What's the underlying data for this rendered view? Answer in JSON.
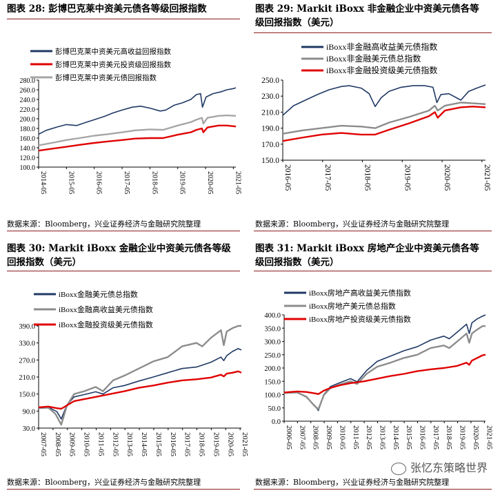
{
  "panels": [
    {
      "title_lines": [
        "图表 28: 彭博巴克莱中资美元债各等级回报指数"
      ],
      "source": "数据来源：Bloomberg，兴业证券经济与金融研究院整理",
      "chart_data": {
        "type": "line",
        "title": "彭博巴克莱中资美元债各等级回报指数",
        "xlabel": "",
        "ylabel": "",
        "x_range": [
          2014.33,
          2021.42
        ],
        "ylim": [
          100,
          280
        ],
        "yticks": [
          100,
          120,
          140,
          160,
          180,
          200,
          220,
          240,
          260,
          280
        ],
        "ytick_labels": [
          "100.0",
          "120.0",
          "140.0",
          "160.0",
          "180.0",
          "200.0",
          "220.0",
          "240.0",
          "260.0",
          "280.0"
        ],
        "xticks": [
          2014.33,
          2015.33,
          2016.33,
          2017.33,
          2018.33,
          2019.33,
          2020.33,
          2021.33
        ],
        "xtick_labels": [
          "2014-05",
          "2015-05",
          "2016-05",
          "2017-05",
          "2018-05",
          "2019-05",
          "2020-05",
          "2021-05"
        ],
        "legend_position": "top-left",
        "series": [
          {
            "name": "彭博巴克莱中资美元高收益回报指数",
            "color": "#1f3864",
            "x": [
              2014.33,
              2014.6,
              2015.0,
              2015.33,
              2015.7,
              2016.0,
              2016.33,
              2016.7,
              2017.0,
              2017.33,
              2017.7,
              2018.0,
              2018.33,
              2018.7,
              2018.9,
              2019.2,
              2019.5,
              2019.8,
              2020.0,
              2020.15,
              2020.22,
              2020.35,
              2020.6,
              2020.9,
              2021.1,
              2021.3,
              2021.42
            ],
            "values": [
              168,
              176,
              183,
              188,
              186,
              192,
              198,
              205,
              212,
              218,
              224,
              226,
              222,
              216,
              218,
              228,
              233,
              240,
              250,
              252,
              224,
              245,
              252,
              256,
              260,
              262,
              264
            ]
          },
          {
            "name": "彭博巴克莱中资美元投资级回报指数",
            "color": "#e00000",
            "x": [
              2014.33,
              2014.8,
              2015.33,
              2015.8,
              2016.33,
              2016.8,
              2017.33,
              2017.8,
              2018.33,
              2018.8,
              2019.33,
              2019.8,
              2020.0,
              2020.2,
              2020.25,
              2020.4,
              2020.8,
              2021.1,
              2021.42
            ],
            "values": [
              134,
              138,
              142,
              146,
              150,
              153,
              156,
              159,
              160,
              160,
              167,
              172,
              177,
              180,
              172,
              182,
              186,
              186,
              184
            ]
          },
          {
            "name": "彭博巴克莱中资美元债回报指数",
            "color": "#a6a6a6",
            "x": [
              2014.33,
              2014.8,
              2015.33,
              2015.8,
              2016.33,
              2016.8,
              2017.33,
              2017.8,
              2018.33,
              2018.8,
              2019.33,
              2019.8,
              2020.0,
              2020.2,
              2020.25,
              2020.4,
              2020.8,
              2021.1,
              2021.42
            ],
            "values": [
              145,
              150,
              156,
              160,
              165,
              168,
              172,
              176,
              178,
              177,
              186,
              193,
              198,
              202,
              190,
              202,
              206,
              207,
              206
            ]
          }
        ]
      }
    },
    {
      "title_lines": [
        "图表 29: Markit iBoxx 非金融企业中资美元债各等",
        "级回报指数（美元）"
      ],
      "source": "数据来源：Bloomberg，兴业证券经济与金融研究院整理",
      "chart_data": {
        "type": "line",
        "title": "Markit iBoxx 非金融企业中资美元债各等级回报指数（美元）",
        "xlabel": "",
        "ylabel": "",
        "x_range": [
          2016.33,
          2021.42
        ],
        "ylim": [
          150,
          250
        ],
        "yticks": [
          150,
          170,
          190,
          210,
          230,
          250
        ],
        "ytick_labels": [
          "150.0",
          "170.0",
          "190.0",
          "210.0",
          "230.0",
          "250.0"
        ],
        "xticks": [
          2016.33,
          2017.33,
          2018.33,
          2019.33,
          2020.33,
          2021.33
        ],
        "xtick_labels": [
          "2016-05",
          "2017-05",
          "2018-05",
          "2019-05",
          "2020-05",
          "2021-05"
        ],
        "legend_position": "top-left",
        "series": [
          {
            "name": "iBoxx非金融高收益美元债指数",
            "color": "#1f3864",
            "x": [
              2016.33,
              2016.6,
              2016.9,
              2017.2,
              2017.5,
              2017.8,
              2018.0,
              2018.3,
              2018.5,
              2018.65,
              2018.8,
              2019.0,
              2019.3,
              2019.6,
              2019.9,
              2020.1,
              2020.2,
              2020.3,
              2020.5,
              2020.8,
              2021.0,
              2021.2,
              2021.42
            ],
            "values": [
              206,
              218,
              225,
              232,
              238,
              242,
              243,
              240,
              233,
              217,
              228,
              236,
              241,
              243,
              243,
              241,
              222,
              232,
              233,
              225,
              236,
              240,
              244
            ]
          },
          {
            "name": "iBoxx非金融美元债总指数",
            "color": "#8c8c8c",
            "x": [
              2016.33,
              2016.8,
              2017.3,
              2017.8,
              2018.3,
              2018.65,
              2019.0,
              2019.5,
              2020.0,
              2020.15,
              2020.22,
              2020.4,
              2020.8,
              2021.1,
              2021.42
            ],
            "values": [
              183,
              187,
              190,
              193,
              192,
              190,
              197,
              204,
              212,
              218,
              212,
              218,
              222,
              221,
              220
            ]
          },
          {
            "name": "iBoxx非金融投资级美元债指数",
            "color": "#e00000",
            "x": [
              2016.33,
              2016.8,
              2017.3,
              2017.8,
              2018.3,
              2018.65,
              2019.0,
              2019.5,
              2020.0,
              2020.15,
              2020.22,
              2020.4,
              2020.8,
              2021.1,
              2021.42
            ],
            "values": [
              174,
              178,
              182,
              184,
              182,
              182,
              188,
              196,
              205,
              210,
              203,
              212,
              216,
              217,
              216
            ]
          }
        ]
      }
    },
    {
      "title_lines": [
        "图表 30: Markit iBoxx 金融企业中资美元债各等级",
        "回报指数（美元）"
      ],
      "source": "数据来源：Bloomberg，兴业证券经济与金融研究院整理",
      "chart_data": {
        "type": "line",
        "title": "Markit iBoxx 金融企业中资美元债各等级回报指数（美元）",
        "xlabel": "",
        "ylabel": "",
        "x_range": [
          2007.33,
          2021.42
        ],
        "ylim": [
          30,
          390
        ],
        "yticks": [
          30,
          90,
          150,
          210,
          270,
          330,
          390
        ],
        "ytick_labels": [
          "30.0",
          "90.0",
          "150.0",
          "210.0",
          "270.0",
          "330.0",
          "390.0"
        ],
        "xticks": [
          2007.33,
          2008.33,
          2009.33,
          2010.33,
          2011.33,
          2012.33,
          2013.33,
          2014.33,
          2015.33,
          2016.33,
          2017.33,
          2018.33,
          2019.33,
          2020.33,
          2021.33
        ],
        "xtick_labels": [
          "2007-05",
          "2008-05",
          "2009-05",
          "2010-05",
          "2011-05",
          "2012-05",
          "2013-05",
          "2014-05",
          "2015-05",
          "2016-05",
          "2017-05",
          "2018-05",
          "2019-05",
          "2020-05",
          "2021-05"
        ],
        "legend_position": "top-center",
        "series": [
          {
            "name": "iBoxx金融美元债总指数",
            "color": "#1f3864",
            "x": [
              2007.33,
              2008.0,
              2008.6,
              2008.9,
              2009.3,
              2009.8,
              2010.5,
              2011.3,
              2011.8,
              2012.5,
              2013.3,
              2014.3,
              2015.3,
              2016.3,
              2017.3,
              2018.3,
              2019.3,
              2020.0,
              2020.2,
              2020.4,
              2020.8,
              2021.2,
              2021.42
            ],
            "values": [
              100,
              104,
              88,
              62,
              112,
              140,
              148,
              158,
              150,
              172,
              180,
              196,
              210,
              225,
              240,
              245,
              262,
              280,
              268,
              285,
              300,
              310,
              305
            ]
          },
          {
            "name": "iBoxx金融高收益美元债指数",
            "color": "#8c8c8c",
            "x": [
              2007.33,
              2008.0,
              2008.5,
              2008.9,
              2009.3,
              2009.8,
              2010.5,
              2011.3,
              2011.8,
              2012.5,
              2013.3,
              2014.3,
              2015.3,
              2016.3,
              2017.3,
              2018.3,
              2018.7,
              2019.3,
              2020.0,
              2020.2,
              2020.4,
              2020.8,
              2021.2,
              2021.42
            ],
            "values": [
              100,
              102,
              80,
              42,
              110,
              150,
              160,
              175,
              160,
              198,
              215,
              240,
              265,
              280,
              318,
              330,
              318,
              348,
              375,
              322,
              370,
              382,
              390,
              390
            ]
          },
          {
            "name": "iBoxx金融投资级美元债指数",
            "color": "#e00000",
            "x": [
              2007.33,
              2008.0,
              2008.6,
              2008.9,
              2009.3,
              2009.8,
              2010.5,
              2011.3,
              2012.3,
              2013.3,
              2014.3,
              2015.3,
              2016.3,
              2017.3,
              2018.3,
              2019.3,
              2020.0,
              2020.2,
              2020.4,
              2020.8,
              2021.2,
              2021.42
            ],
            "values": [
              103,
              106,
              100,
              98,
              110,
              125,
              132,
              140,
              150,
              160,
              172,
              180,
              190,
              198,
              202,
              208,
              218,
              212,
              222,
              225,
              230,
              225
            ]
          }
        ]
      }
    },
    {
      "title_lines": [
        "图表 31: Markit iBoxx 房地产企业中资美元债各等",
        "级回报指数（美元）"
      ],
      "source": "数据来源：Bloomberg，兴业证券经济与金融研究院整理",
      "chart_data": {
        "type": "line",
        "title": "Markit iBoxx 房地产企业中资美元债各等级回报指数（美元）",
        "xlabel": "",
        "ylabel": "",
        "x_range": [
          2006.33,
          2021.42
        ],
        "ylim": [
          0,
          400
        ],
        "yticks": [
          0,
          50,
          100,
          150,
          200,
          250,
          300,
          350,
          400
        ],
        "ytick_labels": [
          "0.0",
          "50.0",
          "100.0",
          "150.0",
          "200.0",
          "250.0",
          "300.0",
          "350.0",
          "400.0"
        ],
        "xticks": [
          2006.33,
          2007.33,
          2008.33,
          2009.33,
          2010.33,
          2011.33,
          2012.33,
          2013.33,
          2014.33,
          2015.33,
          2016.33,
          2017.33,
          2018.33,
          2019.33,
          2020.33,
          2021.33
        ],
        "xtick_labels": [
          "2006-05",
          "2007-05",
          "2008-05",
          "2009-05",
          "2010-05",
          "2011-05",
          "2012-05",
          "2013-05",
          "2014-05",
          "2015-05",
          "2016-05",
          "2017-05",
          "2018-05",
          "2019-05",
          "2020-05",
          "2021-05"
        ],
        "legend_position": "top-left",
        "series": [
          {
            "name": "iBoxx房地产高收益美元债指数",
            "color": "#1f3864",
            "x": [
              2006.33,
              2007.3,
              2008.0,
              2008.6,
              2008.9,
              2009.3,
              2009.8,
              2010.5,
              2011.3,
              2011.8,
              2012.5,
              2013.3,
              2014.3,
              2015.3,
              2016.3,
              2017.3,
              2018.3,
              2018.7,
              2019.3,
              2020.0,
              2020.2,
              2020.4,
              2020.8,
              2021.2,
              2021.42
            ],
            "values": [
              108,
              110,
              90,
              60,
              40,
              100,
              130,
              145,
              160,
              148,
              190,
              225,
              245,
              265,
              280,
              305,
              320,
              310,
              335,
              365,
              330,
              370,
              385,
              395,
              400
            ]
          },
          {
            "name": "iBoxx房地产美元债总指数",
            "color": "#8c8c8c",
            "x": [
              2006.33,
              2007.3,
              2008.0,
              2008.6,
              2008.9,
              2009.3,
              2009.8,
              2010.5,
              2011.3,
              2011.8,
              2012.5,
              2013.3,
              2014.3,
              2015.3,
              2016.3,
              2017.3,
              2018.3,
              2018.7,
              2019.3,
              2020.0,
              2020.2,
              2020.4,
              2020.8,
              2021.2,
              2021.42
            ],
            "values": [
              106,
              108,
              92,
              58,
              45,
              98,
              125,
              138,
              150,
              140,
              178,
              205,
              220,
              238,
              250,
              275,
              285,
              275,
              300,
              330,
              295,
              330,
              345,
              358,
              358
            ]
          },
          {
            "name": "iBoxx房地产投资级美元债指数",
            "color": "#e00000",
            "x": [
              2006.33,
              2007.3,
              2008.0,
              2008.6,
              2008.9,
              2009.3,
              2009.8,
              2010.5,
              2011.3,
              2012.3,
              2013.3,
              2014.3,
              2015.3,
              2016.3,
              2017.3,
              2018.3,
              2019.3,
              2020.0,
              2020.2,
              2020.4,
              2020.8,
              2021.2,
              2021.42
            ],
            "values": [
              108,
              112,
              110,
              105,
              102,
              115,
              125,
              135,
              143,
              150,
              160,
              170,
              178,
              188,
              195,
              200,
              208,
              220,
              212,
              228,
              238,
              248,
              250
            ]
          }
        ]
      }
    }
  ],
  "watermark": "张忆东策略世界"
}
